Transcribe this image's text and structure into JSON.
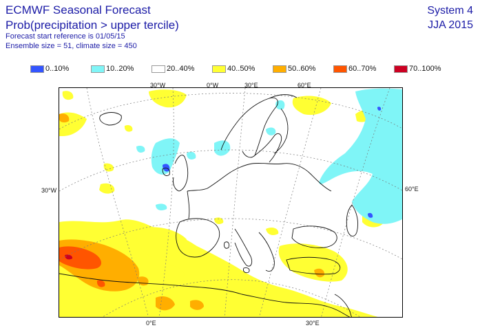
{
  "header": {
    "title": "ECMWF Seasonal Forecast",
    "subtitle": "Prob(precipitation > upper tercile)",
    "start_reference": "Forecast start reference is 01/05/15",
    "ensemble": "Ensemble size = 51, climate size = 450",
    "system": "System 4",
    "season": "JJA 2015"
  },
  "legend": [
    {
      "label": "0..10%",
      "color": "#3355ff"
    },
    {
      "label": "10..20%",
      "color": "#7ff5f7"
    },
    {
      "label": "20..40%",
      "color": "#ffffff"
    },
    {
      "label": "40..50%",
      "color": "#ffff33"
    },
    {
      "label": "50..60%",
      "color": "#ffae00"
    },
    {
      "label": "60..70%",
      "color": "#ff5500"
    },
    {
      "label": "70..100%",
      "color": "#cc0022"
    }
  ],
  "map": {
    "region": "Europe",
    "grid_labels": {
      "top_30w": "30°W",
      "top_0w": "0°W",
      "top_30e": "30°E",
      "top_60e": "60°E",
      "left_30w": "30°W",
      "right_60e": "60°E",
      "bottom_0e": "0°E",
      "bottom_30e": "30°E"
    }
  }
}
